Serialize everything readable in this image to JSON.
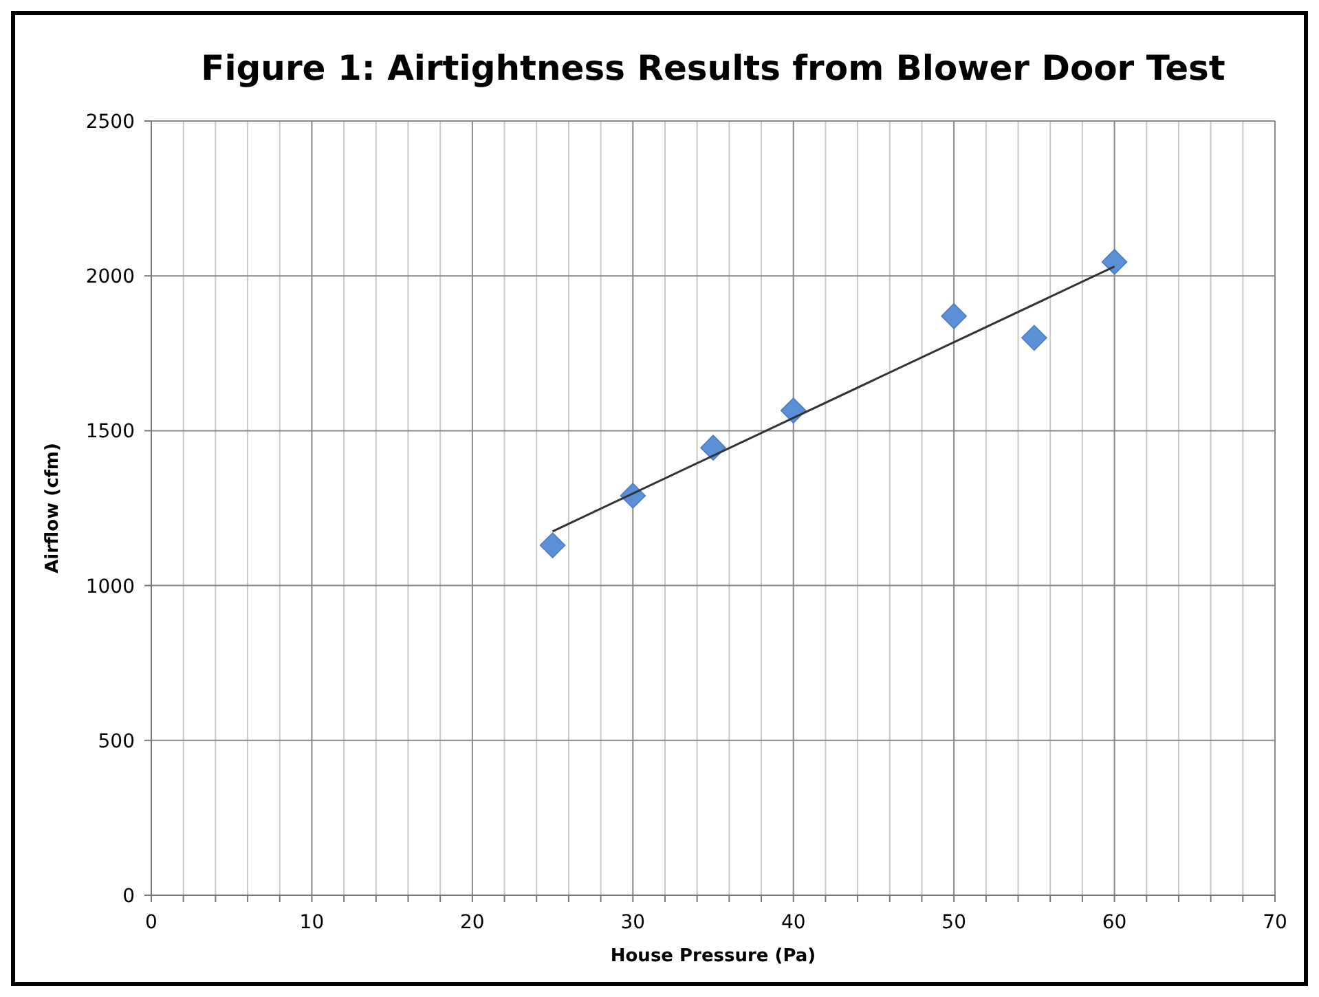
{
  "chart_data": {
    "type": "scatter",
    "title": "Figure 1: Airtightness Results from Blower Door Test",
    "xlabel": "House Pressure (Pa)",
    "ylabel": "Airflow (cfm)",
    "xlim": [
      0,
      70
    ],
    "ylim": [
      0,
      2500
    ],
    "xticks": [
      0,
      {
        "value": 2,
        "label": null
      },
      {
        "value": 4,
        "label": null
      },
      {
        "value": 6,
        "label": null
      },
      {
        "value": 8,
        "label": null
      },
      10,
      {
        "value": 12,
        "label": null
      },
      {
        "value": 14,
        "label": null
      },
      {
        "value": 16,
        "label": null
      },
      {
        "value": 18,
        "label": null
      },
      20,
      {
        "value": 22,
        "label": null
      },
      {
        "value": 24,
        "label": null
      },
      {
        "value": 26,
        "label": null
      },
      {
        "value": 28,
        "label": null
      },
      30,
      {
        "value": 32,
        "label": null
      },
      {
        "value": 34,
        "label": null
      },
      {
        "value": 36,
        "label": null
      },
      {
        "value": 38,
        "label": null
      },
      40,
      {
        "value": 42,
        "label": null
      },
      {
        "value": 44,
        "label": null
      },
      {
        "value": 46,
        "label": null
      },
      {
        "value": 48,
        "label": null
      },
      50,
      {
        "value": 52,
        "label": null
      },
      {
        "value": 54,
        "label": null
      },
      {
        "value": 56,
        "label": null
      },
      {
        "value": 58,
        "label": null
      },
      60,
      {
        "value": 62,
        "label": null
      },
      {
        "value": 64,
        "label": null
      },
      {
        "value": 66,
        "label": null
      },
      {
        "value": 68,
        "label": null
      },
      70
    ],
    "yticks": [
      0,
      500,
      1000,
      1500,
      2000,
      2500
    ],
    "grid": true,
    "series": [
      {
        "marker": "diamond",
        "color": "#5b8fd8",
        "x": [
          25,
          30,
          35,
          40,
          50,
          55,
          60
        ],
        "values": [
          1130,
          1290,
          1445,
          1565,
          1870,
          1800,
          2045
        ]
      },
      {
        "type": "line",
        "marker": "none",
        "color": "#333333",
        "x": [
          25,
          60
        ],
        "values": [
          1175,
          2030
        ]
      }
    ]
  }
}
